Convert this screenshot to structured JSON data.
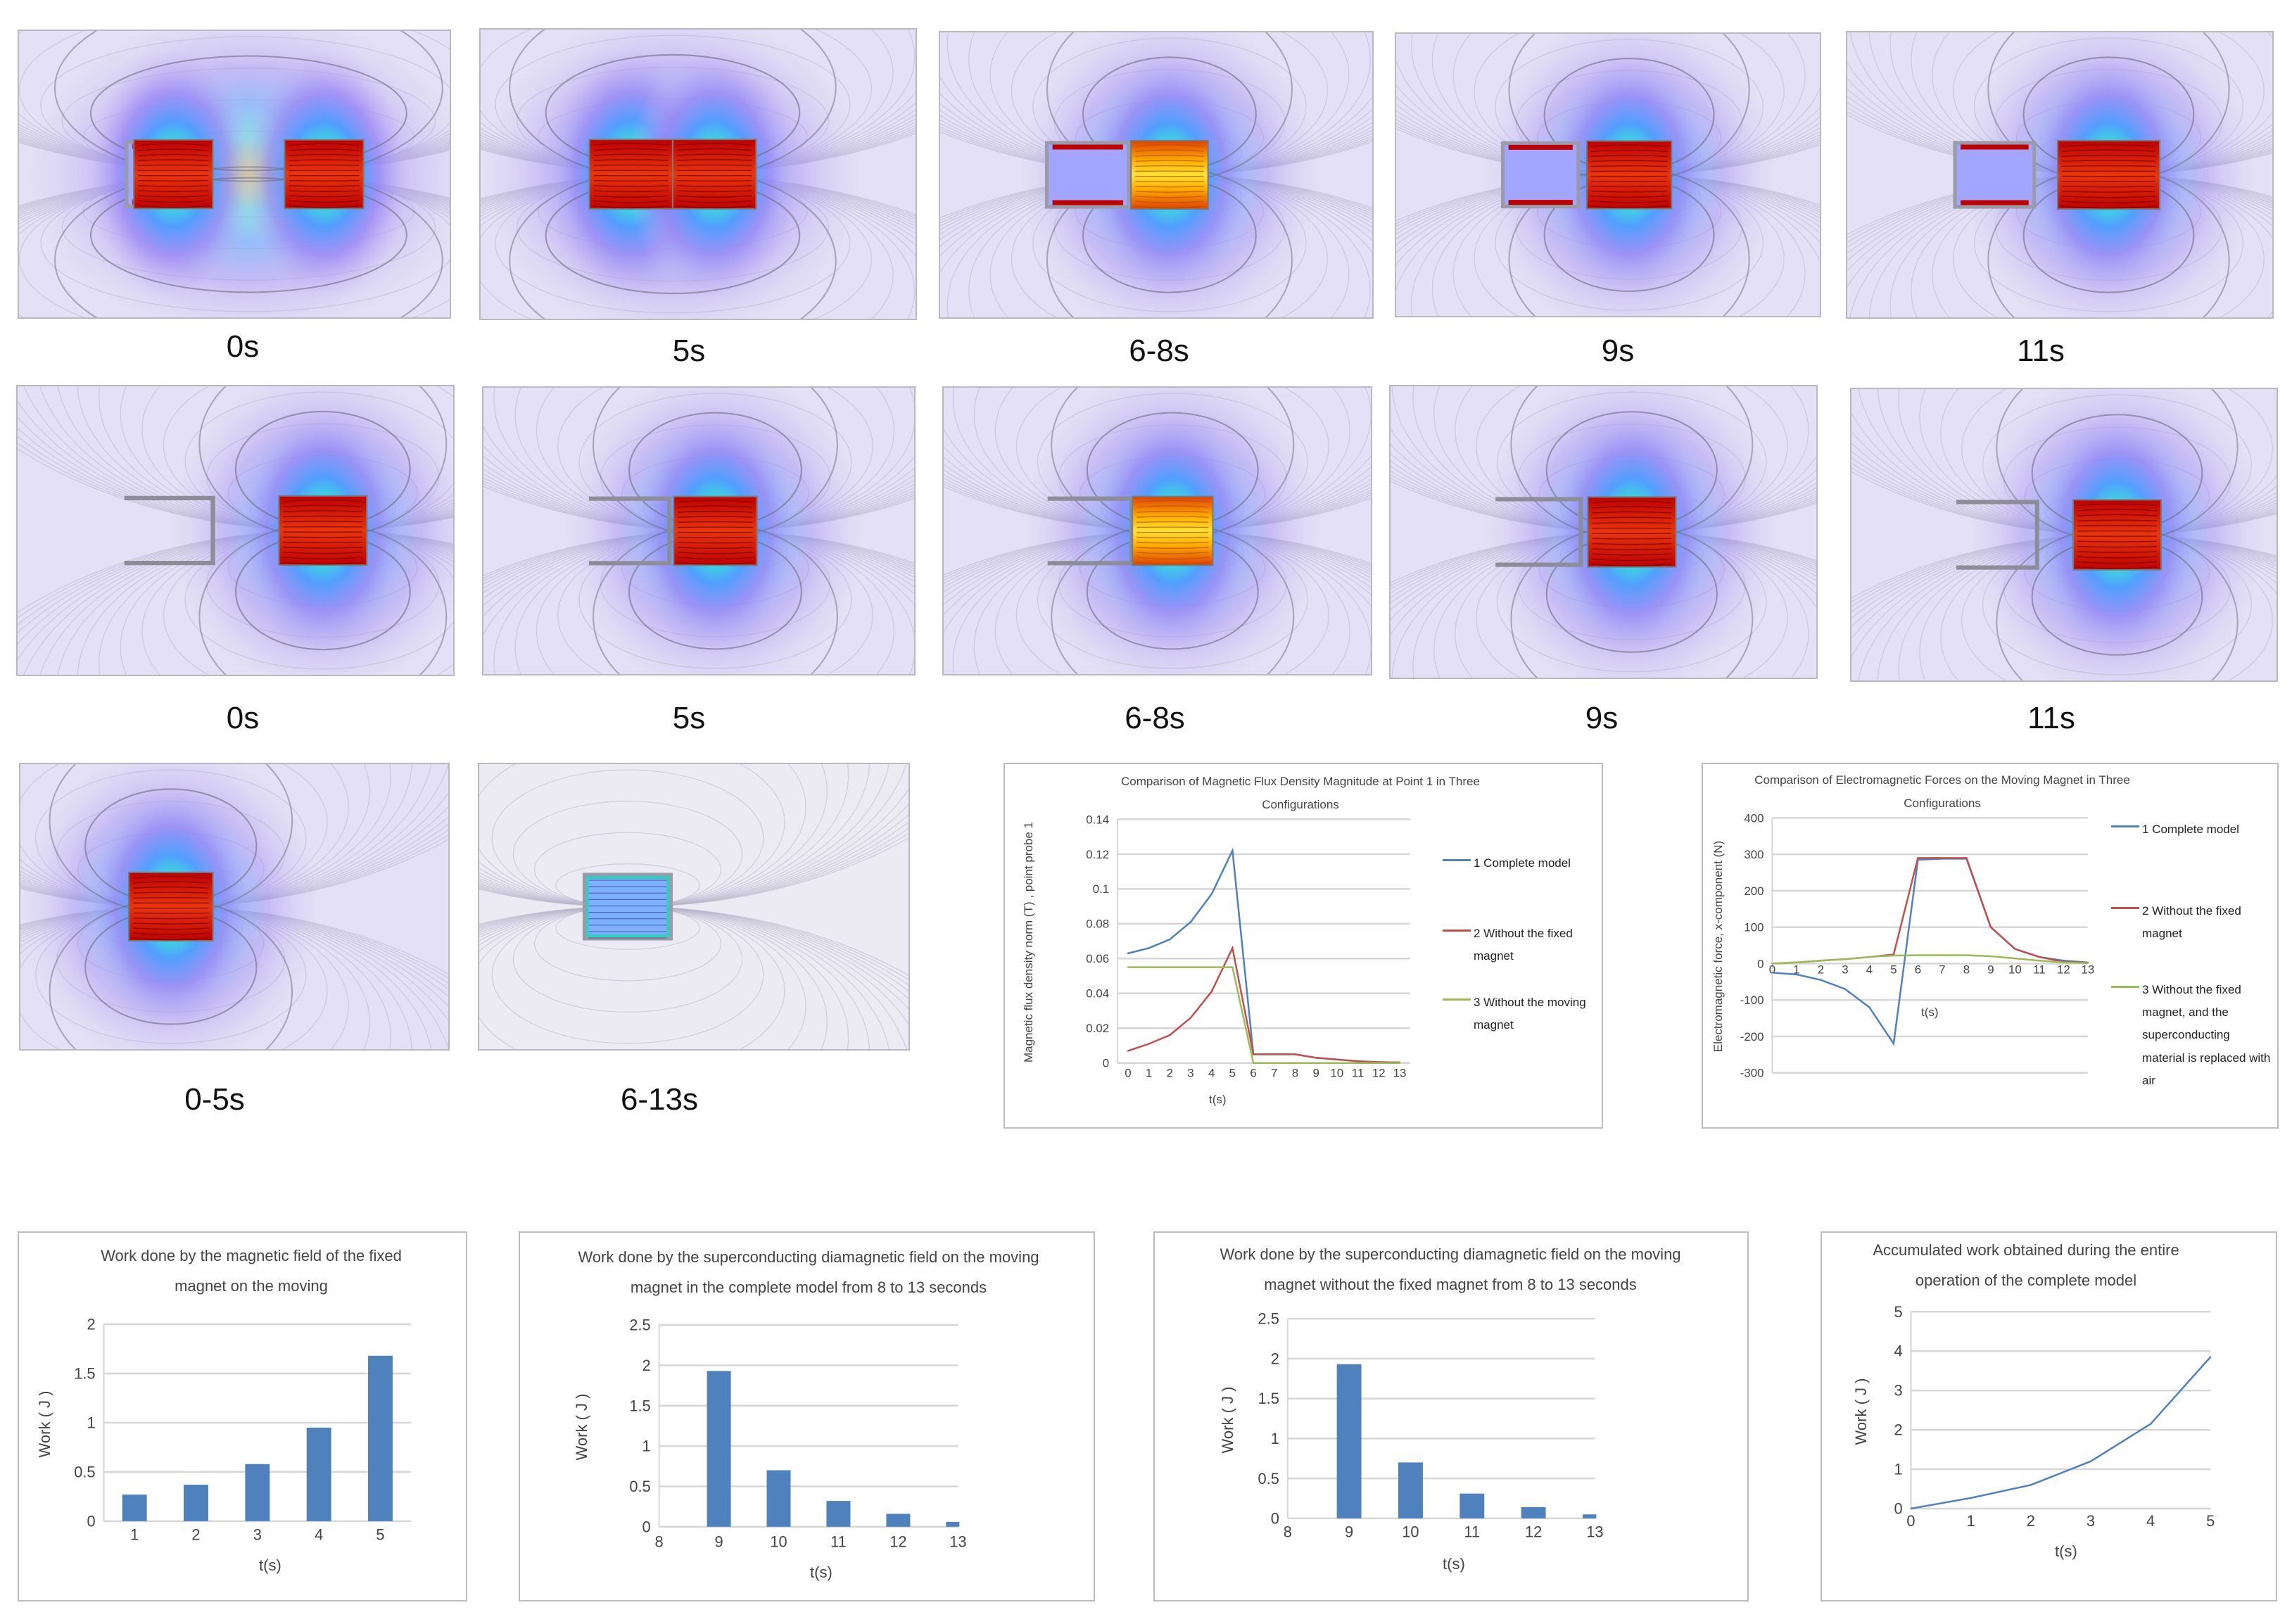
{
  "panels": {
    "row1": [
      "0s",
      "5s",
      "6-8s",
      "9s",
      "11s"
    ],
    "row2": [
      "0s",
      "5s",
      "6-8s",
      "9s",
      "11s"
    ],
    "row3": [
      "0-5s",
      "6-13s"
    ]
  },
  "colors": {
    "blue": "#4f81bd",
    "red": "#c0504d",
    "green": "#9bbb59",
    "bar": "#4f81bd"
  },
  "chart_data": [
    {
      "type": "line",
      "title": "Comparison of Magnetic Flux Density Magnitude at Point 1 in Three Configurations",
      "xlabel": "t(s)",
      "ylabel": "Magnetic flux density norm (T) , point probe 1",
      "x": [
        "0",
        "1",
        "2",
        "3",
        "4",
        "5",
        "6",
        "7",
        "8",
        "9",
        "10",
        "11",
        "12",
        "13"
      ],
      "yticks": [
        "0",
        "0.02",
        "0.04",
        "0.06",
        "0.08",
        "0.1",
        "0.12",
        "0.14"
      ],
      "ylim": [
        0,
        0.14
      ],
      "grid": true,
      "legend": "right",
      "series": [
        {
          "name": "1 Complete model",
          "color": "#4f81bd",
          "values": [
            0.063,
            0.066,
            0.071,
            0.081,
            0.097,
            0.122,
            0.005,
            0.005,
            0.005,
            0.003,
            0.002,
            0.001,
            0.0005,
            0.0003
          ]
        },
        {
          "name": "2 Without the fixed magnet",
          "color": "#c0504d",
          "values": [
            0.007,
            0.011,
            0.016,
            0.026,
            0.041,
            0.066,
            0.005,
            0.005,
            0.005,
            0.003,
            0.002,
            0.001,
            0.0005,
            0.0003
          ]
        },
        {
          "name": "3 Without the moving magnet",
          "color": "#9bbb59",
          "values": [
            0.055,
            0.055,
            0.055,
            0.055,
            0.055,
            0.055,
            0,
            0,
            0,
            0,
            0,
            0,
            0,
            0
          ]
        }
      ]
    },
    {
      "type": "line",
      "title": "Comparison of Electromagnetic Forces on the Moving Magnet in Three Configurations",
      "xlabel": "t(s)",
      "ylabel": "Electromagnetic force, x-component (N)",
      "x": [
        "0",
        "1",
        "2",
        "3",
        "4",
        "5",
        "6",
        "7",
        "8",
        "9",
        "10",
        "11",
        "12",
        "13"
      ],
      "yticks": [
        "-300",
        "-200",
        "-100",
        "0",
        "100",
        "200",
        "300",
        "400"
      ],
      "ylim": [
        -300,
        400
      ],
      "grid": true,
      "legend": "right",
      "series": [
        {
          "name": "1 Complete model",
          "color": "#4f81bd",
          "values": [
            -25,
            -30,
            -45,
            -70,
            -120,
            -220,
            285,
            288,
            288,
            100,
            40,
            18,
            8,
            3
          ]
        },
        {
          "name": "2 Without the fixed magnet",
          "color": "#c0504d",
          "values": [
            0,
            3,
            8,
            12,
            18,
            25,
            290,
            290,
            290,
            100,
            40,
            18,
            5,
            2
          ]
        },
        {
          "name": "3 Without the fixed magnet, and the superconducting material is replaced with air",
          "color": "#9bbb59",
          "values": [
            0,
            3,
            8,
            12,
            18,
            22,
            23,
            23,
            23,
            20,
            14,
            8,
            3,
            1
          ]
        }
      ]
    },
    {
      "type": "bar",
      "title": "Work done by the magnetic field of the fixed magnet on the moving",
      "xlabel": "t(s)",
      "ylabel": "Work ( J )",
      "categories": [
        "1",
        "2",
        "3",
        "4",
        "5"
      ],
      "values": [
        0.27,
        0.37,
        0.58,
        0.95,
        1.68
      ],
      "yticks": [
        "0",
        "0.5",
        "1",
        "1.5",
        "2"
      ],
      "ylim": [
        0,
        2
      ],
      "grid": true
    },
    {
      "type": "bar",
      "title": "Work done by the superconducting diamagnetic field on the moving magnet in the complete model from 8 to 13 seconds",
      "xlabel": "t(s)",
      "ylabel": "Work ( J )",
      "x": [
        "8",
        "9",
        "10",
        "11",
        "12",
        "13"
      ],
      "categories": [
        "9",
        "10",
        "11",
        "12",
        "13"
      ],
      "values": [
        1.93,
        0.7,
        0.32,
        0.16,
        0.06
      ],
      "yticks": [
        "0",
        "0.5",
        "1",
        "1.5",
        "2",
        "2.5"
      ],
      "ylim": [
        0,
        2.5
      ],
      "grid": true
    },
    {
      "type": "bar",
      "title": "Work done by the superconducting diamagnetic field on the moving magnet without the fixed magnet from 8 to 13 seconds",
      "xlabel": "t(s)",
      "ylabel": "Work ( J )",
      "x": [
        "8",
        "9",
        "10",
        "11",
        "12",
        "13"
      ],
      "categories": [
        "9",
        "10",
        "11",
        "12",
        "13"
      ],
      "values": [
        1.93,
        0.7,
        0.31,
        0.14,
        0.05
      ],
      "yticks": [
        "0",
        "0.5",
        "1",
        "1.5",
        "2",
        "2.5"
      ],
      "ylim": [
        0,
        2.5
      ],
      "grid": true
    },
    {
      "type": "line",
      "title": "Accumulated work obtained during the entire operation of the complete model",
      "xlabel": "t(s)",
      "ylabel": "Work ( J )",
      "x": [
        "0",
        "1",
        "2",
        "3",
        "4",
        "5"
      ],
      "yticks": [
        "0",
        "1",
        "2",
        "3",
        "4",
        "5"
      ],
      "ylim": [
        0,
        5
      ],
      "grid": true,
      "series": [
        {
          "color": "#4f81bd",
          "values": [
            0,
            0.27,
            0.6,
            1.2,
            2.15,
            3.85
          ]
        }
      ]
    }
  ]
}
